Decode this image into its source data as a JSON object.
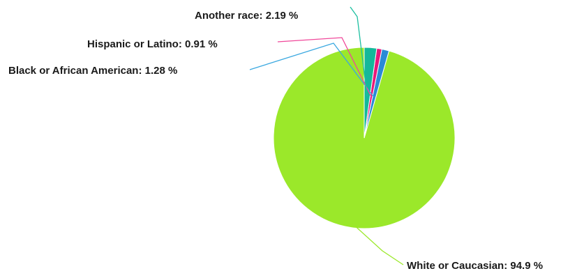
{
  "chart_data": {
    "type": "pie",
    "title": "",
    "start_angle_deg": 0,
    "direction": "counterclockwise",
    "slices": [
      {
        "name": "White or Caucasian",
        "value": 94.9,
        "label": "White or Caucasian: 94.9 %",
        "color": "#9be82a",
        "line_color": "#9be82a"
      },
      {
        "name": "Black or African American",
        "value": 1.28,
        "label": "Black or African American: 1.28 %",
        "color": "#2a8ad6",
        "line_color": "#3aa8e0"
      },
      {
        "name": "Hispanic or Latino",
        "value": 0.91,
        "label": "Hispanic or Latino: 0.91 %",
        "color": "#e8187a",
        "line_color": "#f0479a"
      },
      {
        "name": "Another race",
        "value": 2.19,
        "label": "Another race: 2.19 %",
        "color": "#14b89a",
        "line_color": "#1dbfa0"
      }
    ]
  }
}
